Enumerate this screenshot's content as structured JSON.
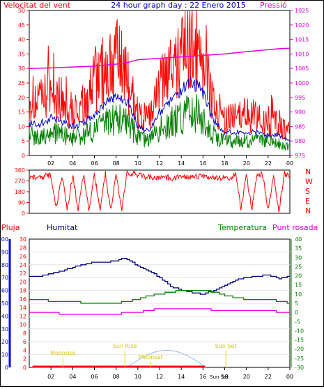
{
  "header": {
    "left_title": "Velocitat del vent",
    "center_title": "24 hour graph day : 22 Enero 2015",
    "right_title": "Pressió"
  },
  "colors": {
    "red": "#ff0000",
    "blue": "#0000cc",
    "green": "#008000",
    "magenta": "#e000e0",
    "navy": "#000080",
    "yellow": "#e8e800"
  },
  "chart_data": [
    {
      "type": "line",
      "id": "wind",
      "title": "24 hour graph day : 22 Enero 2015",
      "xlabel": "",
      "ylabel": "Velocitat del vent",
      "xlim": [
        0,
        24
      ],
      "ylim": [
        0,
        50
      ],
      "y2lim": [
        975,
        1025
      ],
      "x_ticks": [
        "02",
        "04",
        "06",
        "08",
        "10",
        "12",
        "14",
        "16",
        "18",
        "20",
        "22",
        "00"
      ],
      "y_ticks": [
        0,
        5,
        10,
        15,
        20,
        25,
        30,
        35,
        40,
        45,
        50
      ],
      "y2_ticks": [
        975,
        980,
        985,
        990,
        995,
        1000,
        1005,
        1010,
        1015,
        1020,
        1025
      ],
      "series": [
        {
          "name": "",
          "color": "red",
          "style": "gust",
          "x": [
            0,
            1,
            2,
            3,
            4,
            5,
            6,
            7,
            8,
            9,
            10,
            11,
            12,
            13,
            14,
            15,
            16,
            17,
            18,
            19,
            20,
            21,
            22,
            23,
            24
          ],
          "values": [
            20,
            18,
            22,
            19,
            15,
            17,
            25,
            30,
            33,
            27,
            14,
            12,
            24,
            28,
            34,
            38,
            33,
            18,
            12,
            13,
            14,
            13,
            12,
            11,
            8
          ]
        },
        {
          "name": "",
          "color": "blue",
          "style": "avg",
          "x": [
            0,
            1,
            2,
            3,
            4,
            5,
            6,
            7,
            8,
            9,
            10,
            11,
            12,
            13,
            14,
            15,
            16,
            17,
            18,
            19,
            20,
            21,
            22,
            23,
            24
          ],
          "values": [
            11,
            11,
            13,
            12,
            10,
            11,
            14,
            18,
            21,
            19,
            10,
            8,
            15,
            18,
            22,
            25,
            22,
            12,
            8,
            8,
            8,
            8,
            7,
            7,
            5
          ]
        },
        {
          "name": "",
          "color": "green",
          "style": "noisy",
          "x": [
            0,
            1,
            2,
            3,
            4,
            5,
            6,
            7,
            8,
            9,
            10,
            11,
            12,
            13,
            14,
            15,
            16,
            17,
            18,
            19,
            20,
            21,
            22,
            23,
            24
          ],
          "values": [
            7,
            7,
            8,
            7,
            6,
            7,
            9,
            11,
            13,
            12,
            6,
            5,
            9,
            11,
            13,
            15,
            13,
            7,
            5,
            5,
            5,
            5,
            5,
            4,
            3
          ]
        },
        {
          "name": "Pressió",
          "color": "magenta",
          "axis": "y2",
          "x": [
            0,
            2,
            4,
            6,
            8,
            9,
            10,
            12,
            14,
            16,
            18,
            20,
            22,
            23,
            24
          ],
          "values": [
            1005.0,
            1005.2,
            1005.5,
            1005.8,
            1006.5,
            1007.0,
            1008.0,
            1008.5,
            1009.0,
            1009.5,
            1010.0,
            1010.8,
            1011.5,
            1011.8,
            1012.0
          ]
        }
      ]
    },
    {
      "type": "line",
      "id": "direction",
      "xlim": [
        0,
        24
      ],
      "ylim": [
        0,
        360
      ],
      "y_ticks": [
        0,
        90,
        180,
        270,
        360
      ],
      "compass_labels": [
        "N",
        "W",
        "S",
        "E",
        "N"
      ],
      "series": [
        {
          "name": "",
          "color": "red",
          "x": [
            0,
            1,
            1.5,
            2,
            2.5,
            3,
            3.5,
            4,
            4.5,
            5,
            5.5,
            6,
            6.5,
            7,
            7.5,
            8,
            8.5,
            9,
            10,
            11,
            12,
            13,
            14,
            15,
            16,
            17,
            18,
            18.5,
            19,
            19.5,
            20,
            20.5,
            21,
            21.5,
            22,
            22.5,
            23,
            23.5,
            24
          ],
          "values": [
            300,
            290,
            320,
            310,
            40,
            320,
            30,
            320,
            20,
            330,
            10,
            330,
            20,
            340,
            25,
            330,
            20,
            340,
            320,
            300,
            300,
            295,
            300,
            305,
            310,
            290,
            295,
            270,
            330,
            40,
            320,
            30,
            330,
            320,
            30,
            330,
            20,
            330,
            310
          ]
        }
      ]
    },
    {
      "type": "line",
      "id": "humidity",
      "xlim": [
        0,
        24
      ],
      "axis_labels": [
        "Pluja",
        "Humitat",
        "Temperatura",
        "Punt rosada"
      ],
      "pluja_ticks": [
        0,
        10,
        20,
        30,
        40,
        50,
        60,
        70,
        80,
        90,
        100
      ],
      "left_ticks": [
        0,
        2,
        4,
        6,
        8,
        10,
        12,
        14,
        16,
        18,
        20,
        22,
        24,
        26,
        28,
        30
      ],
      "right_ticks": [
        -30,
        -25,
        -20,
        -15,
        -10,
        -5,
        0,
        5,
        10,
        15,
        20,
        25,
        30,
        35,
        40
      ],
      "markers": [
        "Sun Rise",
        "Sun Set",
        "Moonrise",
        "Moonset"
      ],
      "footer_label": "Sun Set",
      "series": [
        {
          "name": "Humitat",
          "color": "navy",
          "axis": "pluja",
          "x": [
            0,
            1,
            2,
            3,
            4,
            5,
            6,
            7,
            8,
            8.5,
            9,
            10,
            11,
            12,
            13,
            14,
            15,
            16,
            17,
            18,
            19,
            20,
            21,
            22,
            23,
            24
          ],
          "values": [
            71,
            71,
            73,
            75,
            78,
            80,
            82,
            82,
            83,
            85,
            84,
            79,
            75,
            70,
            63,
            60,
            58,
            57,
            60,
            64,
            68,
            70,
            71,
            72,
            69,
            71
          ]
        },
        {
          "name": "Temperatura",
          "color": "green",
          "axis": "right",
          "x": [
            0,
            1,
            2,
            3,
            4,
            5,
            6,
            7,
            8,
            9,
            10,
            11,
            12,
            13,
            14,
            15,
            16,
            17,
            18,
            19,
            20,
            21,
            22,
            23,
            24
          ],
          "values": [
            7,
            7,
            6,
            6,
            6,
            5,
            5,
            5,
            5,
            6,
            7,
            9,
            10,
            11,
            12,
            12,
            12,
            11,
            9,
            8,
            7,
            7,
            7,
            6,
            5
          ]
        },
        {
          "name": "Punt rosada",
          "color": "magenta",
          "axis": "right",
          "x": [
            0,
            1,
            2,
            3,
            4,
            5,
            6,
            7,
            8,
            9,
            10,
            11,
            12,
            13,
            14,
            15,
            16,
            17,
            18,
            19,
            20,
            21,
            22,
            23,
            24
          ],
          "values": [
            0,
            0,
            0,
            -1,
            -1,
            -1,
            -1,
            -1,
            -1,
            0,
            0,
            1,
            2,
            2,
            2,
            2,
            2,
            1,
            1,
            1,
            1,
            1,
            1,
            0,
            0
          ]
        }
      ],
      "moon_curve": {
        "name": "",
        "color": "lightblue",
        "start_hour": 9,
        "end_hour": 16.3,
        "peak": 4
      }
    }
  ]
}
